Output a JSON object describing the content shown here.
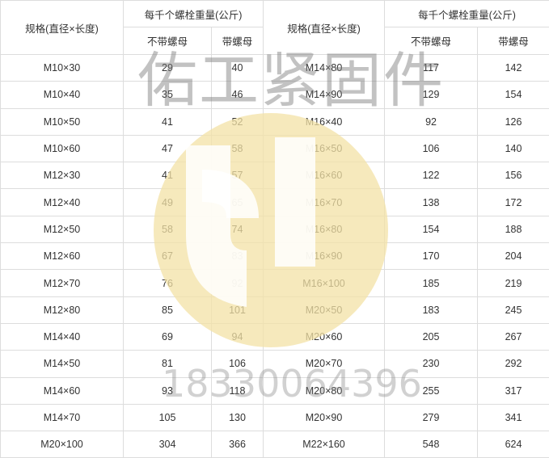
{
  "header": {
    "spec_label": "规格(直径×长度)",
    "weight_label": "每千个螺栓重量(公斤)",
    "no_nut_label": "不带螺母",
    "with_nut_label": "带螺母"
  },
  "rows": [
    {
      "l_spec": "M10×30",
      "l_no": "29",
      "l_with": "40",
      "r_spec": "M14×80",
      "r_no": "117",
      "r_with": "142"
    },
    {
      "l_spec": "M10×40",
      "l_no": "35",
      "l_with": "46",
      "r_spec": "M14×90",
      "r_no": "129",
      "r_with": "154"
    },
    {
      "l_spec": "M10×50",
      "l_no": "41",
      "l_with": "52",
      "r_spec": "M16×40",
      "r_no": "92",
      "r_with": "126"
    },
    {
      "l_spec": "M10×60",
      "l_no": "47",
      "l_with": "58",
      "r_spec": "M16×50",
      "r_no": "106",
      "r_with": "140"
    },
    {
      "l_spec": "M12×30",
      "l_no": "41",
      "l_with": "57",
      "r_spec": "M16×60",
      "r_no": "122",
      "r_with": "156"
    },
    {
      "l_spec": "M12×40",
      "l_no": "49",
      "l_with": "65",
      "r_spec": "M16×70",
      "r_no": "138",
      "r_with": "172"
    },
    {
      "l_spec": "M12×50",
      "l_no": "58",
      "l_with": "74",
      "r_spec": "M16×80",
      "r_no": "154",
      "r_with": "188"
    },
    {
      "l_spec": "M12×60",
      "l_no": "67",
      "l_with": "83",
      "r_spec": "M16×90",
      "r_no": "170",
      "r_with": "204"
    },
    {
      "l_spec": "M12×70",
      "l_no": "76",
      "l_with": "92",
      "r_spec": "M16×100",
      "r_no": "185",
      "r_with": "219"
    },
    {
      "l_spec": "M12×80",
      "l_no": "85",
      "l_with": "101",
      "r_spec": "M20×50",
      "r_no": "183",
      "r_with": "245"
    },
    {
      "l_spec": "M14×40",
      "l_no": "69",
      "l_with": "94",
      "r_spec": "M20×60",
      "r_no": "205",
      "r_with": "267"
    },
    {
      "l_spec": "M14×50",
      "l_no": "81",
      "l_with": "106",
      "r_spec": "M20×70",
      "r_no": "230",
      "r_with": "292"
    },
    {
      "l_spec": "M14×60",
      "l_no": "93",
      "l_with": "118",
      "r_spec": "M20×80",
      "r_no": "255",
      "r_with": "317"
    },
    {
      "l_spec": "M14×70",
      "l_no": "105",
      "l_with": "130",
      "r_spec": "M20×90",
      "r_no": "279",
      "r_with": "341"
    },
    {
      "l_spec": "M20×100",
      "l_no": "304",
      "l_with": "366",
      "r_spec": "M22×160",
      "r_no": "548",
      "r_with": "624"
    }
  ],
  "watermark": {
    "company": "佑工紧固件",
    "phone": "18330064396",
    "logo_color": "#f3e2a6"
  }
}
